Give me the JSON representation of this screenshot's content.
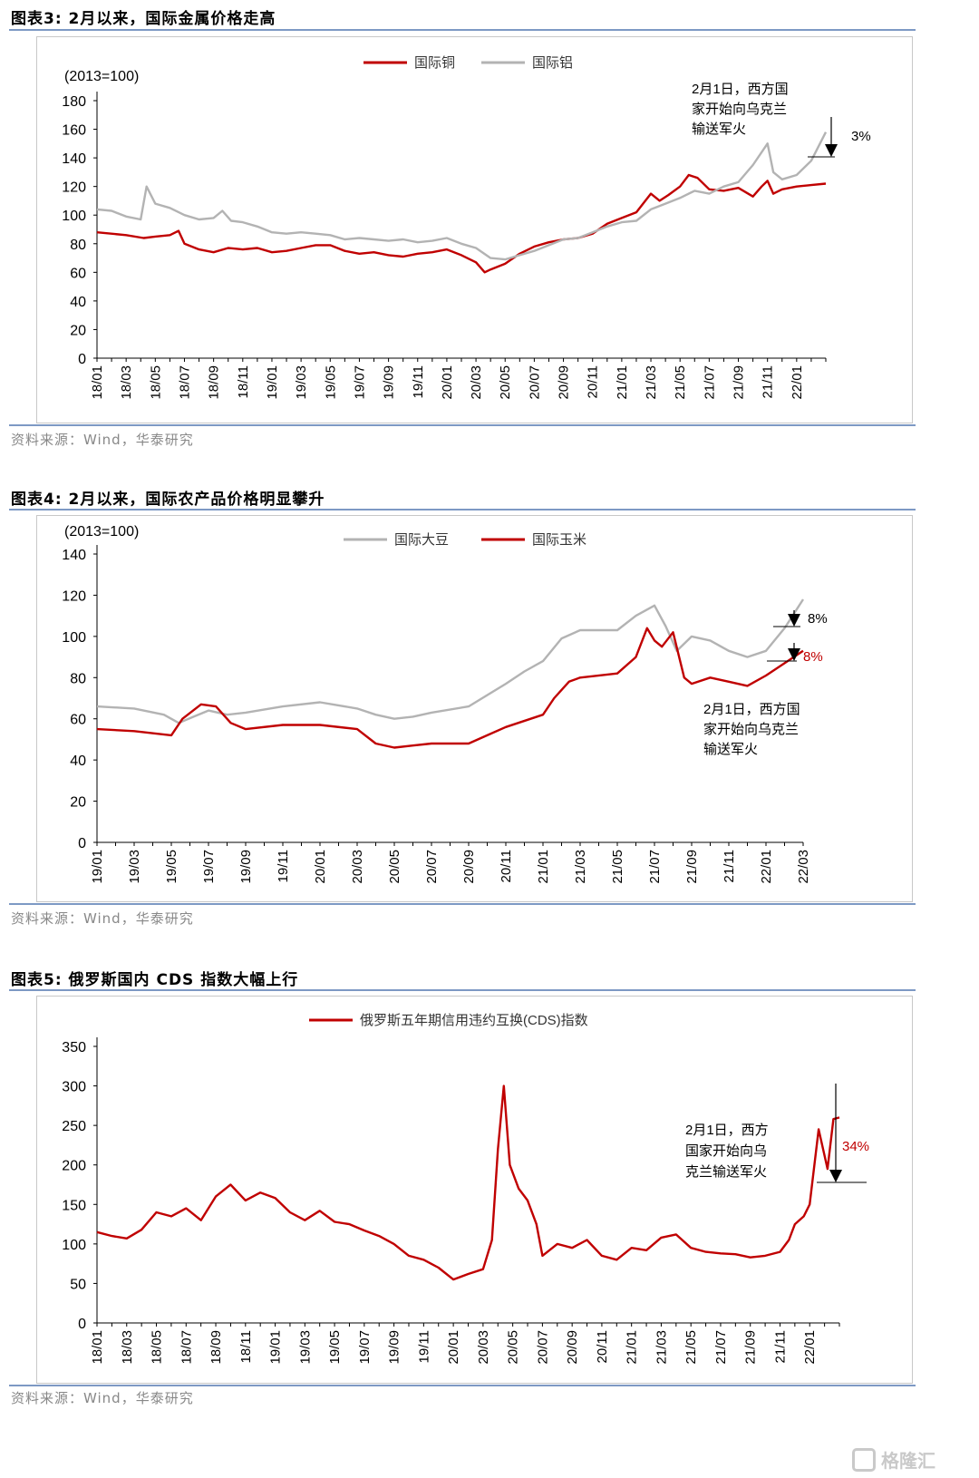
{
  "figures": [
    {
      "title": "图表3:  2月以来，国际金属价格走高",
      "source": "资料来源：Wind，华泰研究",
      "unit": "(2013=100)",
      "annotation": [
        "2月1日，西方国",
        "家开始向乌克兰",
        "输送军火"
      ],
      "pct_labels": [
        {
          "text": "3%",
          "color": "#000000"
        }
      ]
    },
    {
      "title": "图表4:  2月以来，国际农产品价格明显攀升",
      "source": "资料来源：Wind，华泰研究",
      "unit": "(2013=100)",
      "annotation": [
        "2月1日，西方国",
        "家开始向乌克兰",
        "输送军火"
      ],
      "pct_labels": [
        {
          "text": "8%",
          "color": "#000000"
        },
        {
          "text": "8%",
          "color": "#c00000"
        }
      ]
    },
    {
      "title": "图表5:  俄罗斯国内 CDS 指数大幅上行",
      "source": "资料来源：Wind，华泰研究",
      "unit": "",
      "annotation": [
        "2月1日，西方",
        "国家开始向乌",
        "克兰输送军火"
      ],
      "pct_labels": [
        {
          "text": "34%",
          "color": "#c00000"
        }
      ]
    }
  ],
  "watermark": "格隆汇",
  "chart_data": [
    {
      "type": "line",
      "ylim": [
        0,
        180
      ],
      "yticks": [
        0,
        20,
        40,
        60,
        80,
        100,
        120,
        140,
        160,
        180
      ],
      "x_labels": [
        "18/01",
        "18/03",
        "18/05",
        "18/07",
        "18/09",
        "18/11",
        "19/01",
        "19/03",
        "19/05",
        "19/07",
        "19/09",
        "19/11",
        "20/01",
        "20/03",
        "20/05",
        "20/07",
        "20/09",
        "20/11",
        "21/01",
        "21/03",
        "21/05",
        "21/07",
        "21/09",
        "21/11",
        "22/01"
      ],
      "x_end": 25,
      "series": [
        {
          "name": "国际铜",
          "color": "#c00000",
          "points": [
            [
              0,
              88
            ],
            [
              1,
              86
            ],
            [
              1.6,
              84
            ],
            [
              2,
              85
            ],
            [
              2.5,
              86
            ],
            [
              2.8,
              89
            ],
            [
              3,
              80
            ],
            [
              3.5,
              76
            ],
            [
              4,
              74
            ],
            [
              4.5,
              77
            ],
            [
              5,
              76
            ],
            [
              5.5,
              77
            ],
            [
              6,
              74
            ],
            [
              6.5,
              75
            ],
            [
              7,
              77
            ],
            [
              7.5,
              79
            ],
            [
              8,
              79
            ],
            [
              8.5,
              75
            ],
            [
              9,
              73
            ],
            [
              9.5,
              74
            ],
            [
              10,
              72
            ],
            [
              10.5,
              71
            ],
            [
              11,
              73
            ],
            [
              11.5,
              74
            ],
            [
              12,
              76
            ],
            [
              12.5,
              72
            ],
            [
              13,
              67
            ],
            [
              13.3,
              60
            ],
            [
              13.5,
              62
            ],
            [
              14,
              66
            ],
            [
              14.5,
              73
            ],
            [
              15,
              78
            ],
            [
              15.5,
              81
            ],
            [
              16,
              83
            ],
            [
              16.5,
              84
            ],
            [
              17,
              87
            ],
            [
              17.5,
              94
            ],
            [
              18,
              98
            ],
            [
              18.5,
              102
            ],
            [
              19,
              115
            ],
            [
              19.3,
              110
            ],
            [
              19.6,
              114
            ],
            [
              20,
              120
            ],
            [
              20.3,
              128
            ],
            [
              20.6,
              126
            ],
            [
              21,
              118
            ],
            [
              21.5,
              117
            ],
            [
              22,
              119
            ],
            [
              22.5,
              113
            ],
            [
              22.8,
              120
            ],
            [
              23,
              124
            ],
            [
              23.2,
              115
            ],
            [
              23.5,
              118
            ],
            [
              24,
              120
            ],
            [
              24.5,
              121
            ],
            [
              25,
              122
            ]
          ]
        },
        {
          "name": "国际铝",
          "color": "#b3b3b3",
          "points": [
            [
              0,
              104
            ],
            [
              0.5,
              103
            ],
            [
              1,
              99
            ],
            [
              1.5,
              97
            ],
            [
              1.7,
              120
            ],
            [
              2,
              108
            ],
            [
              2.5,
              105
            ],
            [
              3,
              100
            ],
            [
              3.5,
              97
            ],
            [
              4,
              98
            ],
            [
              4.3,
              103
            ],
            [
              4.6,
              96
            ],
            [
              5,
              95
            ],
            [
              5.5,
              92
            ],
            [
              6,
              88
            ],
            [
              6.5,
              87
            ],
            [
              7,
              88
            ],
            [
              7.5,
              87
            ],
            [
              8,
              86
            ],
            [
              8.5,
              83
            ],
            [
              9,
              84
            ],
            [
              9.5,
              83
            ],
            [
              10,
              82
            ],
            [
              10.5,
              83
            ],
            [
              11,
              81
            ],
            [
              11.5,
              82
            ],
            [
              12,
              84
            ],
            [
              12.5,
              80
            ],
            [
              13,
              77
            ],
            [
              13.5,
              70
            ],
            [
              14,
              69
            ],
            [
              14.5,
              72
            ],
            [
              15,
              75
            ],
            [
              15.5,
              79
            ],
            [
              16,
              83
            ],
            [
              16.5,
              84
            ],
            [
              17,
              88
            ],
            [
              17.5,
              92
            ],
            [
              18,
              95
            ],
            [
              18.5,
              96
            ],
            [
              19,
              104
            ],
            [
              19.5,
              108
            ],
            [
              20,
              112
            ],
            [
              20.5,
              117
            ],
            [
              21,
              115
            ],
            [
              21.5,
              120
            ],
            [
              22,
              123
            ],
            [
              22.5,
              135
            ],
            [
              23,
              150
            ],
            [
              23.2,
              130
            ],
            [
              23.5,
              125
            ],
            [
              24,
              128
            ],
            [
              24.5,
              138
            ],
            [
              25,
              158
            ]
          ]
        }
      ]
    },
    {
      "type": "line",
      "ylim": [
        0,
        140
      ],
      "yticks": [
        0,
        20,
        40,
        60,
        80,
        100,
        120,
        140
      ],
      "x_labels": [
        "19/01",
        "19/03",
        "19/05",
        "19/07",
        "19/09",
        "19/11",
        "20/01",
        "20/03",
        "20/05",
        "20/07",
        "20/09",
        "20/11",
        "21/01",
        "21/03",
        "21/05",
        "21/07",
        "21/09",
        "21/11",
        "22/01",
        "22/03"
      ],
      "x_end": 19,
      "series": [
        {
          "name": "国际大豆",
          "color": "#b3b3b3",
          "points": [
            [
              0,
              66
            ],
            [
              1,
              65
            ],
            [
              1.8,
              62
            ],
            [
              2.2,
              58
            ],
            [
              2.6,
              61
            ],
            [
              3,
              64
            ],
            [
              3.5,
              62
            ],
            [
              4,
              63
            ],
            [
              5,
              66
            ],
            [
              6,
              68
            ],
            [
              7,
              65
            ],
            [
              7.5,
              62
            ],
            [
              8,
              60
            ],
            [
              8.5,
              61
            ],
            [
              9,
              63
            ],
            [
              10,
              66
            ],
            [
              11,
              77
            ],
            [
              11.5,
              83
            ],
            [
              12,
              88
            ],
            [
              12.5,
              99
            ],
            [
              13,
              103
            ],
            [
              13.5,
              103
            ],
            [
              14,
              103
            ],
            [
              14.5,
              110
            ],
            [
              15,
              115
            ],
            [
              15.3,
              105
            ],
            [
              15.6,
              93
            ],
            [
              16,
              100
            ],
            [
              16.5,
              98
            ],
            [
              17,
              93
            ],
            [
              17.5,
              90
            ],
            [
              18,
              93
            ],
            [
              18.5,
              104
            ],
            [
              19,
              118
            ]
          ]
        },
        {
          "name": "国际玉米",
          "color": "#c00000",
          "points": [
            [
              0,
              55
            ],
            [
              1,
              54
            ],
            [
              2,
              52
            ],
            [
              2.3,
              60
            ],
            [
              2.8,
              67
            ],
            [
              3.2,
              66
            ],
            [
              3.6,
              58
            ],
            [
              4,
              55
            ],
            [
              5,
              57
            ],
            [
              6,
              57
            ],
            [
              7,
              55
            ],
            [
              7.5,
              48
            ],
            [
              8,
              46
            ],
            [
              8.5,
              47
            ],
            [
              9,
              48
            ],
            [
              10,
              48
            ],
            [
              10.5,
              52
            ],
            [
              11,
              56
            ],
            [
              12,
              62
            ],
            [
              12.3,
              70
            ],
            [
              12.7,
              78
            ],
            [
              13,
              80
            ],
            [
              14,
              82
            ],
            [
              14.5,
              90
            ],
            [
              14.8,
              104
            ],
            [
              15,
              98
            ],
            [
              15.2,
              95
            ],
            [
              15.5,
              102
            ],
            [
              15.8,
              80
            ],
            [
              16,
              77
            ],
            [
              16.5,
              80
            ],
            [
              17,
              78
            ],
            [
              17.5,
              76
            ],
            [
              18,
              81
            ],
            [
              18.5,
              87
            ],
            [
              19,
              93
            ]
          ]
        }
      ]
    },
    {
      "type": "line",
      "ylim": [
        0,
        350
      ],
      "yticks": [
        0,
        50,
        100,
        150,
        200,
        250,
        300,
        350
      ],
      "x_labels": [
        "18/01",
        "18/03",
        "18/05",
        "18/07",
        "18/09",
        "18/11",
        "19/01",
        "19/03",
        "19/05",
        "19/07",
        "19/09",
        "19/11",
        "20/01",
        "20/03",
        "20/05",
        "20/07",
        "20/09",
        "20/11",
        "21/01",
        "21/03",
        "21/05",
        "21/07",
        "21/09",
        "21/11",
        "22/01"
      ],
      "x_end": 25,
      "series": [
        {
          "name": "俄罗斯五年期信用违约互换(CDS)指数",
          "color": "#c00000",
          "points": [
            [
              0,
              115
            ],
            [
              0.5,
              110
            ],
            [
              1,
              107
            ],
            [
              1.5,
              118
            ],
            [
              2,
              140
            ],
            [
              2.5,
              135
            ],
            [
              3,
              145
            ],
            [
              3.5,
              130
            ],
            [
              4,
              160
            ],
            [
              4.5,
              175
            ],
            [
              5,
              155
            ],
            [
              5.5,
              165
            ],
            [
              6,
              158
            ],
            [
              6.5,
              140
            ],
            [
              7,
              130
            ],
            [
              7.5,
              142
            ],
            [
              8,
              128
            ],
            [
              8.5,
              125
            ],
            [
              9,
              117
            ],
            [
              9.5,
              110
            ],
            [
              10,
              100
            ],
            [
              10.5,
              85
            ],
            [
              11,
              80
            ],
            [
              11.5,
              70
            ],
            [
              12,
              55
            ],
            [
              12.5,
              62
            ],
            [
              13,
              68
            ],
            [
              13.3,
              105
            ],
            [
              13.5,
              220
            ],
            [
              13.7,
              300
            ],
            [
              13.9,
              200
            ],
            [
              14.2,
              170
            ],
            [
              14.5,
              155
            ],
            [
              14.8,
              125
            ],
            [
              15,
              85
            ],
            [
              15.5,
              100
            ],
            [
              16,
              95
            ],
            [
              16.5,
              105
            ],
            [
              17,
              85
            ],
            [
              17.5,
              80
            ],
            [
              18,
              95
            ],
            [
              18.5,
              92
            ],
            [
              19,
              108
            ],
            [
              19.5,
              112
            ],
            [
              20,
              95
            ],
            [
              20.5,
              90
            ],
            [
              21,
              88
            ],
            [
              21.5,
              87
            ],
            [
              22,
              83
            ],
            [
              22.5,
              85
            ],
            [
              23,
              90
            ],
            [
              23.3,
              105
            ],
            [
              23.5,
              125
            ],
            [
              23.8,
              135
            ],
            [
              24,
              150
            ],
            [
              24.3,
              245
            ],
            [
              24.6,
              195
            ],
            [
              24.8,
              258
            ],
            [
              25,
              260
            ]
          ]
        }
      ]
    }
  ]
}
